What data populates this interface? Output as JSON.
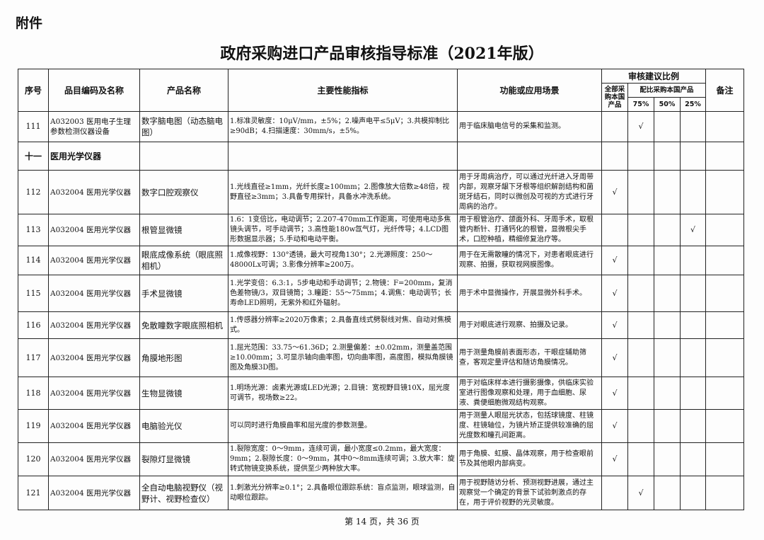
{
  "attachment_label": "附件",
  "title": "政府采购进口产品审核指导标准（2021年版）",
  "headers": {
    "seq": "序号",
    "code": "品目编码及名称",
    "product": "产品名称",
    "spec": "主要性能指标",
    "function": "功能或应用场景",
    "ratio_group": "审核建议比例",
    "all_domestic": "全部采购本国产品",
    "partial_group": "配比采购本国产品",
    "p75": "75%",
    "p50": "50%",
    "p25": "25%",
    "remarks": "备注"
  },
  "check_mark": "√",
  "row_111": {
    "seq": "111",
    "code": "A032003 医用电子生理参数检测仪器设备",
    "product": "数字脑电图（动态脑电图）",
    "spec": "1.标准灵敏度：10μV/mm，±5%；2.噪声电平≤5μV；3.共模抑制比≥90dB；4.扫描速度：30mm/s，±5%。",
    "function": "用于临床脑电信号的采集和监测。",
    "ratio": "75%"
  },
  "section": {
    "number": "十一",
    "name": "医用光学仪器"
  },
  "rows": [
    {
      "seq": "112",
      "code": "A032004 医用光学仪器",
      "product": "数字口腔观察仪",
      "spec": "1.光线直径≥1mm，光纤长度≥100mm；2.图像放大倍数≥48倍，视野直径≥3mm；3.具备专用探针，具备水冲洗系统。",
      "function": "用于牙周病治疗，可以通过光纤进入牙周带内部，观察牙龈下牙根等组织解剖结构和菌斑牙结石，同时以微创及可视的方式进行牙周病的治疗。",
      "ratio": "all"
    },
    {
      "seq": "113",
      "code": "A032004 医用光学仪器",
      "product": "根管显微镜",
      "spec": "1.6：1变倍比，电动调节；2.207-470mm工作距离，可使用电动多焦镜头调节，可手动调节；3.高性能180w氙气灯，光纤传导；4.LCD图形数据显示器；5.手动和电动平衡。",
      "function": "用于根管治疗、颌面外科、牙周手术，取根管内断针、打通钙化的根管，显微根尖手术，口腔种植，精细修复治疗等。",
      "ratio": "25%"
    },
    {
      "seq": "114",
      "code": "A032004 医用光学仪器",
      "product": "眼底成像系统（眼底照相机）",
      "spec": "1.成像视野：130°透镜，最大可视角130°；2.光源照度：250～48000Lx可调；3.影像分辨率≥200万。",
      "function": "用于在无需散瞳的情况下，对患者眼底进行观察、拍摄，获取视网膜图像。",
      "ratio": "all"
    },
    {
      "seq": "115",
      "code": "A032004 医用光学仪器",
      "product": "手术显微镜",
      "spec": "1.光学变倍：6.3:1，5步电动和手动调节；2.物镜：F=200mm，复消色差物镜/3，双目镜筒；3.瞳距：55～75mm；4.调焦：电动调节；长寿命LED照明，无紫外和红外辐射。",
      "function": "用于术中显微操作，开展显微外科手术。",
      "ratio": "all"
    },
    {
      "seq": "116",
      "code": "A032004 医用光学仪器",
      "product": "免散瞳数字眼底照相机",
      "spec": "1.传感器分辨率≥2020万像素；2.具备直线式劈裂线对焦、自动对焦模式。",
      "function": "用于对眼底进行观察、拍摄及记录。",
      "ratio": "all"
    },
    {
      "seq": "117",
      "code": "A032004 医用光学仪器",
      "product": "角膜地形图",
      "spec": "1.屈光范围：33.75～61.36D；2.测量偏差：±0.02mm，测量盖范围≥10.00mm；3.可显示轴向曲率图，切向曲率图，高度图，模拟角膜镜图及角膜3D图。",
      "function": "用于测量角膜前表面形态，干眼症辅助筛查，客观定量评估和随访角膜情况。",
      "ratio": "all"
    },
    {
      "seq": "118",
      "code": "A032004 医用光学仪器",
      "product": "生物显微镜",
      "spec": "1.明场光源：卤素光源或LED光源；2.目镜：宽视野目镜10X，屈光度可调节，视场数≥22。",
      "function": "用于对临床样本进行摄影摄像，供临床实验室进行图像观察和处理，用于血细胞、尿液、粪便细胞微观结构观察。",
      "ratio": "all"
    },
    {
      "seq": "119",
      "code": "A032004 医用光学仪器",
      "product": "电脑验光仪",
      "spec": "可以同时进行角膜曲率和屈光度的参数测量。",
      "function": "用于测量人眼屈光状态，包括球镜度、柱镜度、柱镜轴位，为镜片矫正提供较准确的屈光度数和瞳孔间距离。",
      "ratio": "all"
    },
    {
      "seq": "120",
      "code": "A032004 医用光学仪器",
      "product": "裂隙灯显微镜",
      "spec": "1.裂隙宽度：0～9mm，连续可调，最小宽度≤0.2mm，最大宽度：9mm；2.裂隙长度：0～9mm，其中0～8mm连续可调；3.放大率：旋转式物镜变换系统，提供至少两种放大率。",
      "function": "用于角膜、虹膜、晶体观察，用于检查眼前节及其他眼内部病变。",
      "ratio": "all"
    },
    {
      "seq": "121",
      "code": "A032004 医用光学仪器",
      "product": "全自动电脑视野仪（视野计、视野检查仪）",
      "spec": "1.刺激光分辨率≥0.1°；2.具备眼位跟踪系统：盲点监测，眼球监测，自动眼位跟踪。",
      "function": "用于视野随访分析、预测视野进展，通过主观察觉一个确定的背景下试验刺激点的存在，用于评价视野的光灵敏度。",
      "ratio": "75%"
    }
  ],
  "footer": "第 14 页，共 36 页"
}
